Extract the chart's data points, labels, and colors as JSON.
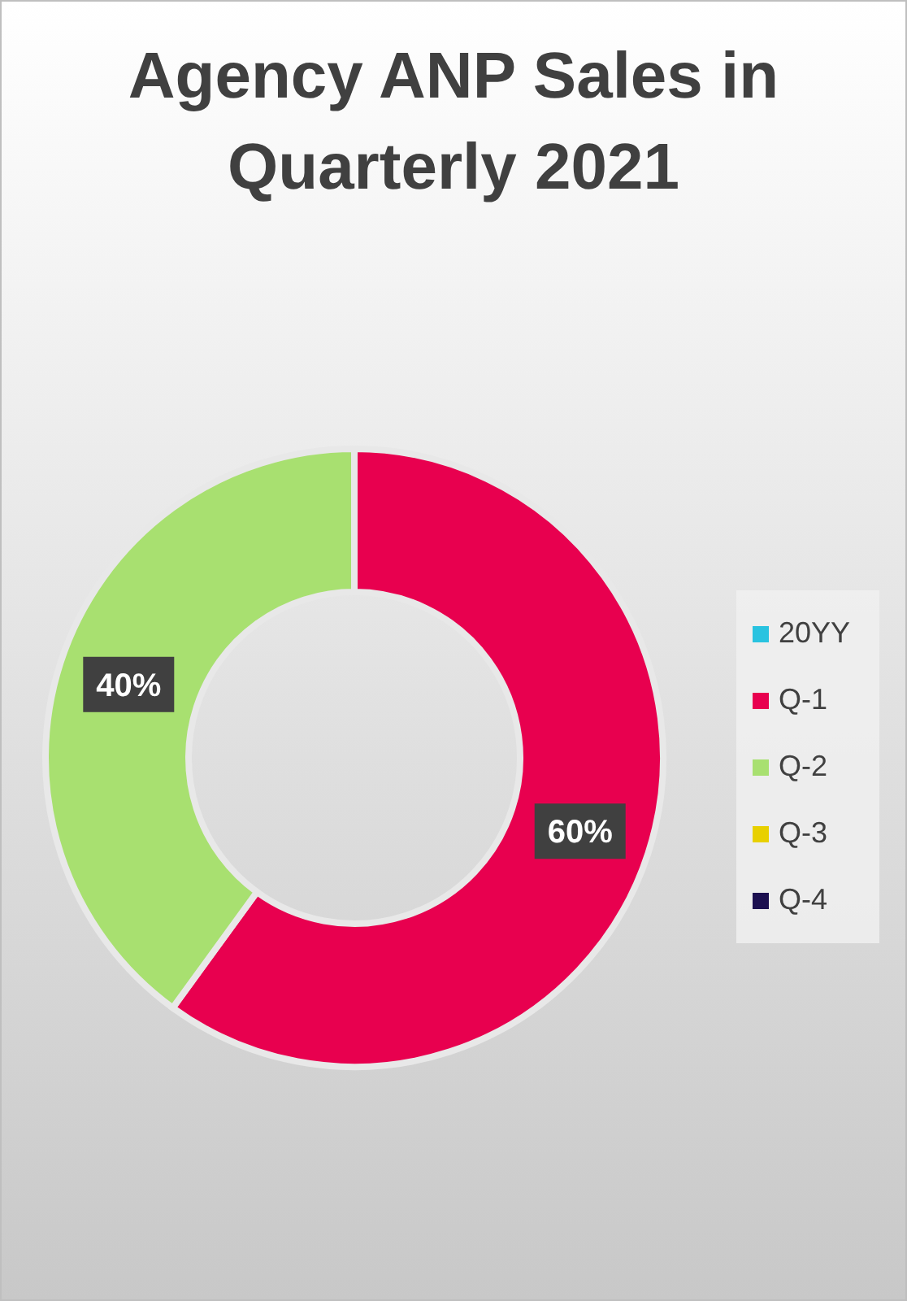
{
  "chart_data": {
    "type": "donut",
    "title": "Agency ANP Sales in Quarterly 2021",
    "categories": [
      "20YY",
      "Q-1",
      "Q-2",
      "Q-3",
      "Q-4"
    ],
    "values": [
      0,
      60,
      40,
      0,
      0
    ],
    "colors": [
      "#29c3e0",
      "#e8004f",
      "#a8e070",
      "#e8d000",
      "#1c1050"
    ],
    "value_labels": [
      null,
      "60%",
      "40%",
      null,
      null
    ],
    "legend": "right"
  }
}
